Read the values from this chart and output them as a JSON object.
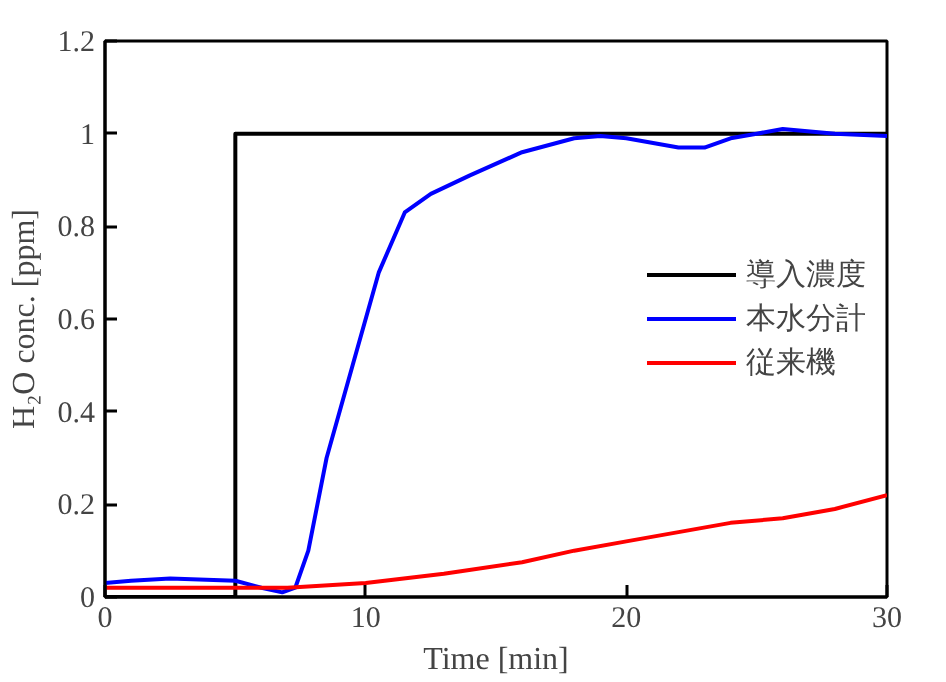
{
  "chart_data": {
    "type": "line",
    "xlabel": "Time [min]",
    "ylabel": "H₂O conc. [ppm]",
    "xlim": [
      0,
      30
    ],
    "xticks": [
      0,
      10,
      20,
      30
    ],
    "ylim": [
      0,
      1.2
    ],
    "yticks": [
      0,
      {
        "value": 0.2,
        "label": "0.2"
      },
      {
        "value": 0.4,
        "label": "0.4"
      },
      {
        "value": 0.6,
        "label": "0.6"
      },
      {
        "value": 0.8,
        "label": "0.8"
      },
      1,
      {
        "value": 1.2,
        "label": "1.2"
      }
    ],
    "grid": false,
    "legend": "right",
    "marker": "none",
    "line_style": "solid",
    "series": [
      {
        "name": "導入濃度",
        "color": "#000000",
        "x": [
          0,
          5,
          5,
          30
        ],
        "values": [
          0,
          0,
          1,
          1
        ]
      },
      {
        "name": "本水分計",
        "color": "#0000ff",
        "x": [
          0,
          1,
          2.5,
          5,
          6,
          6.8,
          7.3,
          7.8,
          8.5,
          9.5,
          10.5,
          11.5,
          12.5,
          14,
          16,
          18,
          19,
          20,
          22,
          23,
          24,
          25,
          26,
          28,
          30
        ],
        "values": [
          0.03,
          0.035,
          0.04,
          0.035,
          0.02,
          0.01,
          0.02,
          0.1,
          0.3,
          0.5,
          0.7,
          0.83,
          0.87,
          0.91,
          0.96,
          0.99,
          0.995,
          0.99,
          0.97,
          0.97,
          0.99,
          1.0,
          1.01,
          1.0,
          0.995
        ]
      },
      {
        "name": "従来機",
        "color": "#ff0000",
        "x": [
          0,
          5,
          7,
          10,
          13,
          16,
          18,
          20,
          22,
          24,
          26,
          28,
          30
        ],
        "values": [
          0.02,
          0.02,
          0.02,
          0.03,
          0.05,
          0.075,
          0.1,
          0.12,
          0.14,
          0.16,
          0.17,
          0.19,
          0.22
        ]
      }
    ]
  }
}
